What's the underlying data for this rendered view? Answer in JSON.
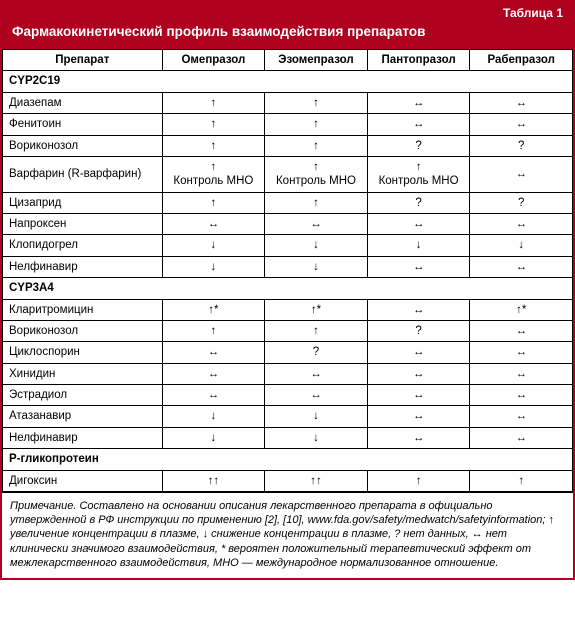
{
  "colors": {
    "brand": "#b00020",
    "border": "#000000",
    "bg": "#ffffff",
    "text": "#000000",
    "header_text": "#ffffff"
  },
  "typography": {
    "base_family": "Arial",
    "cell_fontsize_pt": 9,
    "title_fontsize_pt": 10,
    "note_fontsize_pt": 8.5
  },
  "table_label": "Таблица 1",
  "title": "Фармакокинетический профиль взаимодействия препаратов",
  "columns": [
    "Препарат",
    "Омепразол",
    "Эзомепразол",
    "Пантопразол",
    "Рабепразол"
  ],
  "column_widths_pct": [
    28,
    18,
    18,
    18,
    18
  ],
  "sections": [
    {
      "name": "CYP2C19",
      "rows": [
        {
          "drug": "Диазепам",
          "vals": [
            "↑",
            "↑",
            "↔",
            "↔"
          ]
        },
        {
          "drug": "Фенитоин",
          "vals": [
            "↑",
            "↑",
            "↔",
            "↔"
          ]
        },
        {
          "drug": "Вориконозол",
          "vals": [
            "↑",
            "↑",
            "?",
            "?"
          ]
        },
        {
          "drug": "Варфарин (R-варфарин)",
          "vals": [
            "↑\nКонтроль МНО",
            "↑\nКонтроль МНО",
            "↑\nКонтроль МНО",
            "↔"
          ]
        },
        {
          "drug": "Цизаприд",
          "vals": [
            "↑",
            "↑",
            "?",
            "?"
          ]
        },
        {
          "drug": "Напроксен",
          "vals": [
            "↔",
            "↔",
            "↔",
            "↔"
          ]
        },
        {
          "drug": "Клопидогрел",
          "vals": [
            "↓",
            "↓",
            "↓",
            "↓"
          ]
        },
        {
          "drug": "Нелфинавир",
          "vals": [
            "↓",
            "↓",
            "↔",
            "↔"
          ]
        }
      ]
    },
    {
      "name": "CYP3A4",
      "rows": [
        {
          "drug": "Кларитромицин",
          "vals": [
            "↑*",
            "↑*",
            "↔",
            "↑*"
          ]
        },
        {
          "drug": "Вориконозол",
          "vals": [
            "↑",
            "↑",
            "?",
            "↔"
          ]
        },
        {
          "drug": "Циклоспорин",
          "vals": [
            "↔",
            "?",
            "↔",
            "↔"
          ]
        },
        {
          "drug": "Хинидин",
          "vals": [
            "↔",
            "↔",
            "↔",
            "↔"
          ]
        },
        {
          "drug": "Эстрадиол",
          "vals": [
            "↔",
            "↔",
            "↔",
            "↔"
          ]
        },
        {
          "drug": "Атазанавир",
          "vals": [
            "↓",
            "↓",
            "↔",
            "↔"
          ]
        },
        {
          "drug": "Нелфинавир",
          "vals": [
            "↓",
            "↓",
            "↔",
            "↔"
          ]
        }
      ]
    },
    {
      "name": "Р-гликопротеин",
      "rows": [
        {
          "drug": "Дигоксин",
          "vals": [
            "↑↑",
            "↑↑",
            "↑",
            "↑"
          ]
        }
      ]
    }
  ],
  "note": "Примечание. Составлено на основании описания лекарственного препарата в официально утвержденной в РФ инструкции по применению [2], [10], www.fda.gov/safety/medwatch/safetyinformation; ↑ увеличение концентрации в плазме, ↓ снижение концентрации в плазме, ? нет данных, ↔ нет клинически значимого взаимодействия, * вероятен положительный терапевтический эффект от межлекарственного взаимодействия, МНО — международное нормализованное отношение."
}
